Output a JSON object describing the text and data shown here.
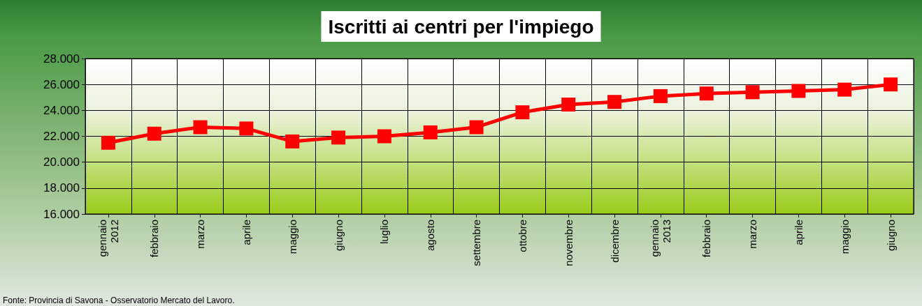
{
  "chart_data": {
    "type": "line",
    "title": "Iscritti ai centri per l'impiego",
    "categories": [
      "gennaio\n2012",
      "febbraio",
      "marzo",
      "aprile",
      "maggio",
      "giugno",
      "luglio",
      "agosto",
      "settembre",
      "ottobre",
      "novembre",
      "dicembre",
      "gennaio\n2013",
      "febbraio",
      "marzo",
      "aprile",
      "maggio",
      "giugno"
    ],
    "series": [
      {
        "color": "#ff0000",
        "values": [
          21500,
          22200,
          22700,
          22600,
          21600,
          21900,
          22000,
          22300,
          22700,
          23850,
          24450,
          24650,
          25100,
          25300,
          25400,
          25500,
          25600,
          26000
        ]
      }
    ],
    "ylim": [
      16000,
      28000
    ],
    "yticks": [
      {
        "value": 16000,
        "label": "16.000"
      },
      {
        "value": 18000,
        "label": "18.000"
      },
      {
        "value": 20000,
        "label": "20.000"
      },
      {
        "value": 22000,
        "label": "22.000"
      },
      {
        "value": 24000,
        "label": "24.000"
      },
      {
        "value": 26000,
        "label": "26.000"
      },
      {
        "value": 28000,
        "label": "28.000"
      }
    ],
    "grid": true,
    "marker": "square",
    "line_style": "solid",
    "annotations": [
      "Fonte: Provincia di Savona - Osservatorio Mercato del Lavoro."
    ]
  }
}
